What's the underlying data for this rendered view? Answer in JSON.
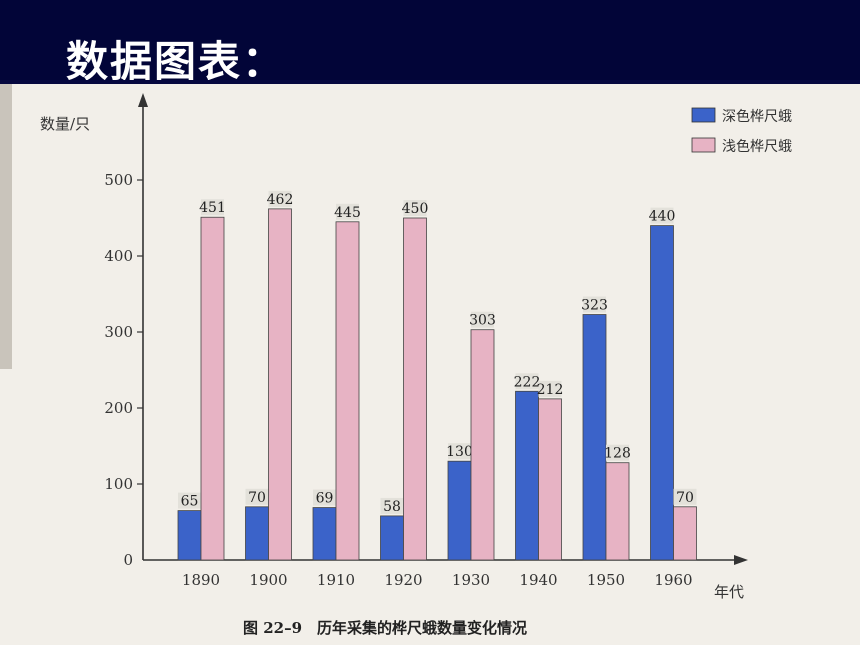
{
  "slide": {
    "title": "数据图表："
  },
  "chart_data": {
    "type": "bar",
    "categories": [
      "1890",
      "1900",
      "1910",
      "1920",
      "1930",
      "1940",
      "1950",
      "1960"
    ],
    "series": [
      {
        "name": "深色桦尺蛾",
        "values": [
          65,
          70,
          69,
          58,
          130,
          222,
          323,
          440
        ],
        "color": "#3b63c9"
      },
      {
        "name": "浅色桦尺蛾",
        "values": [
          451,
          462,
          445,
          450,
          303,
          212,
          128,
          70
        ],
        "color": "#e7b3c4"
      }
    ],
    "title": "图 22–9　历年采集的桦尺蛾数量变化情况",
    "xlabel": "年代",
    "ylabel": "数量/只",
    "ylim": [
      0,
      500
    ],
    "yticks": [
      0,
      100,
      200,
      300,
      400,
      500
    ],
    "legend_position": "top-right",
    "grid": false
  }
}
